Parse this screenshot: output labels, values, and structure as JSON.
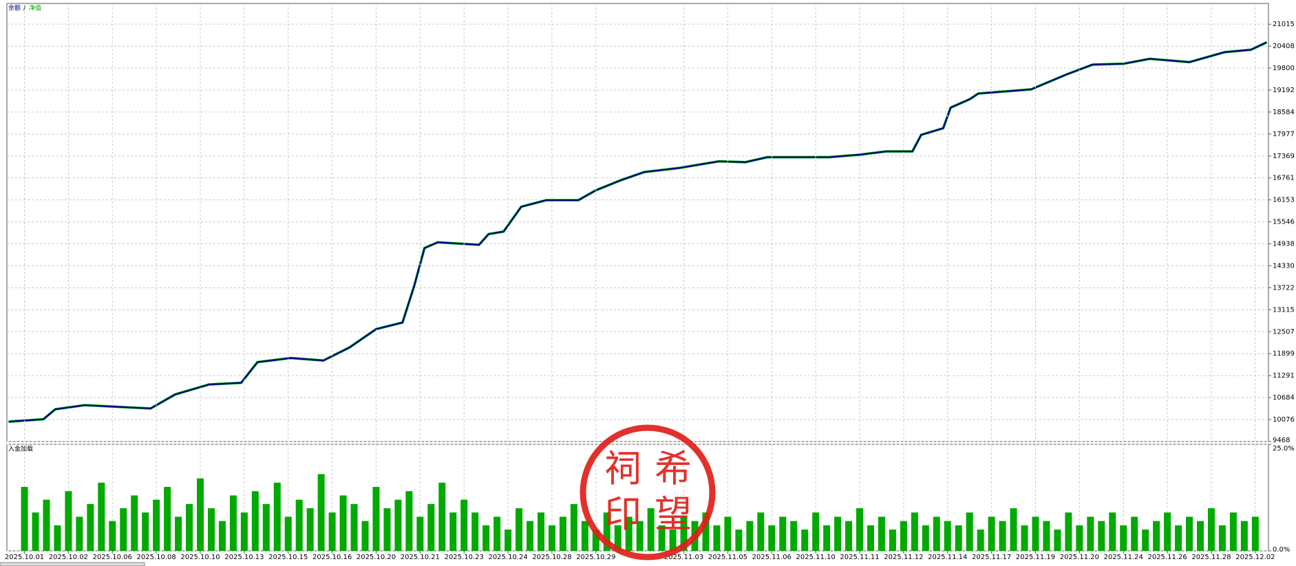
{
  "chart_data": [
    {
      "type": "line",
      "legend_separator": "/",
      "xlim": [
        -0.4,
        28.3
      ],
      "ylim": [
        9468,
        21589
      ],
      "yticks": [
        9468,
        10076,
        10684,
        11291,
        11899,
        12507,
        13115,
        13722,
        14330,
        14938,
        15546,
        16153,
        16761,
        17369,
        17977,
        18584,
        19192,
        19800,
        20408,
        21015
      ],
      "grid": true,
      "series": [
        {
          "name": "余额",
          "color": "#00008b",
          "x": [
            -0.36,
            0.43,
            0.7,
            1.37,
            2.1,
            2.87,
            3.43,
            4.2,
            4.93,
            5.3,
            6.06,
            6.8,
            7.4,
            8.0,
            8.6,
            8.87,
            9.1,
            9.4,
            10.34,
            10.56,
            10.9,
            11.3,
            11.87,
            12.6,
            13.0,
            13.56,
            14.1,
            14.9,
            15.8,
            16.4,
            16.9,
            18.3,
            19.0,
            19.6,
            20.2,
            20.4,
            20.9,
            21.07,
            21.5,
            21.7,
            22.9,
            23.7,
            24.3,
            25.0,
            25.6,
            26.5,
            27.3,
            27.9,
            28.26
          ],
          "values": [
            10017,
            10085,
            10360,
            10474,
            10429,
            10383,
            10772,
            11046,
            11092,
            11664,
            11778,
            11709,
            12075,
            12578,
            12761,
            13790,
            14820,
            14980,
            14911,
            15208,
            15277,
            15963,
            16146,
            16146,
            16420,
            16695,
            16924,
            17038,
            17221,
            17198,
            17335,
            17335,
            17404,
            17495,
            17495,
            17953,
            18136,
            18707,
            18936,
            19096,
            19211,
            19622,
            19897,
            19920,
            20057,
            19965,
            20240,
            20308,
            20514
          ]
        },
        {
          "name": "净值",
          "color": "#00b000",
          "x": [
            -0.36,
            0.43,
            0.7,
            1.37,
            2.1,
            2.87,
            3.43,
            4.2,
            4.93,
            5.3,
            6.06,
            6.8,
            7.4,
            8.0,
            8.6,
            8.87,
            9.1,
            9.4,
            10.34,
            10.56,
            10.9,
            11.3,
            11.87,
            12.6,
            13.0,
            13.56,
            14.1,
            14.9,
            15.8,
            16.4,
            16.9,
            18.3,
            19.0,
            19.6,
            20.2,
            20.4,
            20.9,
            21.07,
            21.5,
            21.7,
            22.9,
            23.7,
            24.3,
            25.0,
            25.6,
            26.5,
            27.3,
            27.9,
            28.26
          ],
          "values": [
            10017,
            10085,
            10360,
            10474,
            10429,
            10383,
            10772,
            11046,
            11092,
            11664,
            11778,
            11709,
            12075,
            12578,
            12761,
            13790,
            14820,
            14980,
            14911,
            15208,
            15277,
            15963,
            16146,
            16146,
            16420,
            16695,
            16924,
            17038,
            17221,
            17198,
            17335,
            17335,
            17404,
            17495,
            17495,
            17953,
            18136,
            18707,
            18936,
            19096,
            19211,
            19622,
            19897,
            19920,
            20057,
            19965,
            20240,
            20308,
            20514
          ]
        }
      ]
    },
    {
      "type": "bar",
      "title": "入金加载",
      "color": "#00aa00",
      "xlim": [
        -0.4,
        28.3
      ],
      "ylim": [
        0,
        25
      ],
      "yticks": [
        {
          "value": 0,
          "label": "0.0%"
        },
        {
          "value": 25,
          "label": "25.0%"
        }
      ],
      "xticks": [
        {
          "value": 0,
          "label": "2025.10.01"
        },
        {
          "value": 1,
          "label": "2025.10.02"
        },
        {
          "value": 2,
          "label": "2025.10.06"
        },
        {
          "value": 3,
          "label": "2025.10.08"
        },
        {
          "value": 4,
          "label": "2025.10.10"
        },
        {
          "value": 5,
          "label": "2025.10.13"
        },
        {
          "value": 6,
          "label": "2025.10.15"
        },
        {
          "value": 7,
          "label": "2025.10.16"
        },
        {
          "value": 8,
          "label": "2025.10.20"
        },
        {
          "value": 9,
          "label": "2025.10.21"
        },
        {
          "value": 10,
          "label": "2025.10.23"
        },
        {
          "value": 11,
          "label": "2025.10.24"
        },
        {
          "value": 12,
          "label": "2025.10.28"
        },
        {
          "value": 13,
          "label": "2025.10.29"
        },
        {
          "value": 15,
          "label": "2025.11.03"
        },
        {
          "value": 16,
          "label": "2025.11.05"
        },
        {
          "value": 17,
          "label": "2025.11.06"
        },
        {
          "value": 18,
          "label": "2025.11.10"
        },
        {
          "value": 19,
          "label": "2025.11.11"
        },
        {
          "value": 20,
          "label": "2025.11.12"
        },
        {
          "value": 21,
          "label": "2025.11.14"
        },
        {
          "value": 22,
          "label": "2025.11.17"
        },
        {
          "value": 23,
          "label": "2025.11.19"
        },
        {
          "value": 24,
          "label": "2025.11.20"
        },
        {
          "value": 25,
          "label": "2025.11.24"
        },
        {
          "value": 26,
          "label": "2025.11.26"
        },
        {
          "value": 27,
          "label": "2025.11.28"
        },
        {
          "value": 28,
          "label": "2025.12.02"
        }
      ],
      "grid": true,
      "x": [
        0,
        0.25,
        0.5,
        0.75,
        1,
        1.25,
        1.5,
        1.75,
        2,
        2.25,
        2.5,
        2.75,
        3,
        3.25,
        3.5,
        3.75,
        4,
        4.25,
        4.5,
        4.75,
        5,
        5.25,
        5.5,
        5.75,
        6,
        6.25,
        6.5,
        6.75,
        7,
        7.25,
        7.5,
        7.75,
        8,
        8.25,
        8.5,
        8.75,
        9,
        9.25,
        9.5,
        9.75,
        10,
        10.25,
        10.5,
        10.75,
        11,
        11.25,
        11.5,
        11.75,
        12,
        12.25,
        12.5,
        12.75,
        13,
        13.25,
        13.5,
        13.75,
        14,
        14.25,
        14.5,
        14.75,
        15,
        15.25,
        15.5,
        15.75,
        16,
        16.25,
        16.5,
        16.75,
        17,
        17.25,
        17.5,
        17.75,
        18,
        18.25,
        18.5,
        18.75,
        19,
        19.25,
        19.5,
        19.75,
        20,
        20.25,
        20.5,
        20.75,
        21,
        21.25,
        21.5,
        21.75,
        22,
        22.25,
        22.5,
        22.75,
        23,
        23.25,
        23.5,
        23.75,
        24,
        24.25,
        24.5,
        24.75,
        25,
        25.25,
        25.5,
        25.75,
        26,
        26.25,
        26.5,
        26.75,
        27,
        27.25,
        27.5,
        27.75,
        28
      ],
      "values": [
        15,
        9,
        12,
        6,
        14,
        8,
        11,
        16,
        7,
        10,
        13,
        9,
        12,
        15,
        8,
        11,
        17,
        10,
        7,
        13,
        9,
        14,
        11,
        16,
        8,
        12,
        10,
        18,
        9,
        13,
        11,
        7,
        15,
        10,
        12,
        14,
        8,
        11,
        16,
        9,
        12,
        9,
        6,
        8,
        5,
        10,
        7,
        9,
        6,
        8,
        11,
        7,
        5,
        9,
        6,
        8,
        7,
        10,
        6,
        5,
        8,
        7,
        9,
        6,
        8,
        5,
        7,
        9,
        6,
        8,
        7,
        5,
        9,
        6,
        8,
        7,
        10,
        6,
        8,
        5,
        7,
        9,
        6,
        8,
        7,
        6,
        9,
        5,
        8,
        7,
        10,
        6,
        8,
        7,
        5,
        9,
        6,
        8,
        7,
        9,
        6,
        8,
        5,
        7,
        9,
        6,
        8,
        7,
        10,
        6,
        9,
        7,
        8
      ]
    }
  ],
  "stamp": {
    "chars": [
      "祠",
      "希",
      "印",
      "望"
    ]
  }
}
